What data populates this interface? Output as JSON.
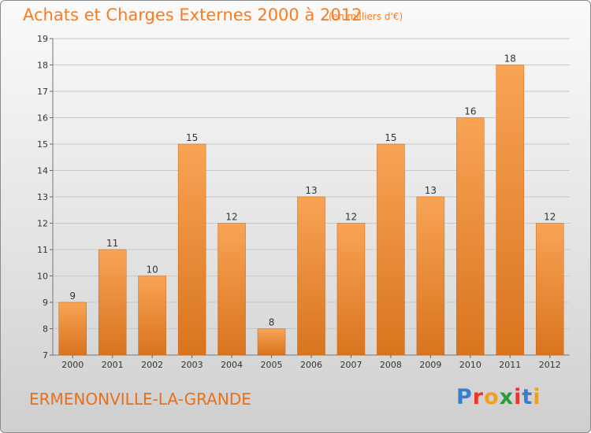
{
  "header": {
    "title": "Achats et Charges Externes 2000 à 2012",
    "unit_note": "(en milliers d'€)"
  },
  "footer": {
    "commune": "ERMENONVILLE-LA-GRANDE",
    "brand": "Proxiti",
    "brand_letter_colors": [
      "#3a7ec9",
      "#e8372c",
      "#f0a020",
      "#2a9a3c",
      "#e8372c",
      "#3a7ec9",
      "#f0a020"
    ]
  },
  "colors": {
    "title": "#ff7a1a",
    "bar_top": "#f8a455",
    "bar_bottom": "#d9741e",
    "grid": "#c8c8c8",
    "axis_text": "#333333"
  },
  "chart_data": {
    "type": "bar",
    "title": "Achats et Charges Externes 2000 à 2012",
    "subtitle": "(en milliers d'€)",
    "categories": [
      "2000",
      "2001",
      "2002",
      "2003",
      "2004",
      "2005",
      "2006",
      "2007",
      "2008",
      "2009",
      "2010",
      "2011",
      "2012"
    ],
    "values": [
      9,
      11,
      10,
      15,
      12,
      8,
      13,
      12,
      15,
      13,
      16,
      18,
      12
    ],
    "ylim": [
      7,
      19
    ],
    "yticks": [
      7,
      8,
      9,
      10,
      11,
      12,
      13,
      14,
      15,
      16,
      17,
      18,
      19
    ],
    "xlabel": "",
    "ylabel": "",
    "grid": true,
    "data_labels": true
  }
}
